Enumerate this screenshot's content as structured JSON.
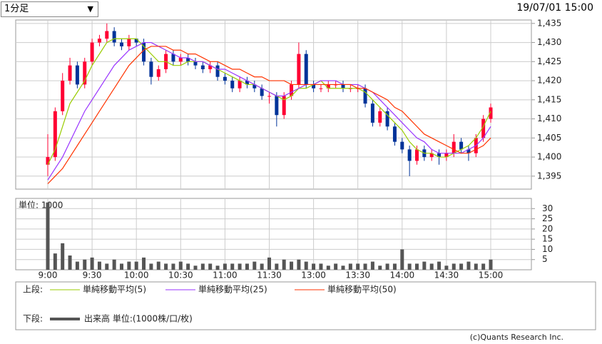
{
  "header": {
    "period_select": "1分足",
    "timestamp": "19/07/01 15:00"
  },
  "chart_data": [
    {
      "type": "candlestick",
      "categories": [
        "9:00",
        null,
        null,
        null,
        null,
        null,
        "9:30",
        null,
        null,
        null,
        null,
        null,
        "10:00",
        null,
        null,
        null,
        null,
        null,
        "10:30",
        null,
        null,
        null,
        null,
        null,
        "11:00",
        null,
        null,
        null,
        null,
        null,
        "11:30",
        null,
        null,
        null,
        null,
        null,
        "13:00",
        null,
        null,
        null,
        null,
        null,
        "13:30",
        null,
        null,
        null,
        null,
        null,
        "14:00",
        null,
        null,
        null,
        null,
        null,
        "14:30",
        null,
        null,
        null,
        null,
        null,
        "15:00"
      ],
      "open": [
        1398,
        1400,
        1412,
        1420,
        1424,
        1419,
        1425,
        1430,
        1431,
        1433,
        1430,
        1429,
        1431,
        1430,
        1425,
        1421,
        1423,
        1427,
        1425,
        1426,
        1425,
        1424,
        1423,
        1424,
        1421,
        1420,
        1418,
        1420,
        1419,
        1418,
        1416,
        1416,
        1411,
        1416,
        1419,
        1427,
        1419,
        1418,
        1418,
        1419,
        1419,
        1418,
        1418,
        1418,
        1414,
        1409,
        1412,
        1408,
        1404,
        1402,
        1399,
        1402,
        1400,
        1401,
        1400,
        1401,
        1404,
        1402,
        1401,
        1405,
        1410
      ],
      "high": [
        1406,
        1413,
        1422,
        1426,
        1425,
        1426,
        1431,
        1432,
        1435,
        1434,
        1431,
        1432,
        1431,
        1431,
        1426,
        1424,
        1428,
        1428,
        1427,
        1427,
        1426,
        1425,
        1425,
        1425,
        1422,
        1421,
        1421,
        1421,
        1420,
        1419,
        1417,
        1417,
        1417,
        1420,
        1430,
        1428,
        1420,
        1419,
        1420,
        1420,
        1420,
        1419,
        1419,
        1419,
        1415,
        1413,
        1413,
        1409,
        1405,
        1403,
        1403,
        1403,
        1402,
        1402,
        1402,
        1406,
        1405,
        1403,
        1406,
        1411,
        1414
      ],
      "low": [
        1395,
        1399,
        1411,
        1419,
        1418,
        1418,
        1424,
        1429,
        1430,
        1429,
        1428,
        1428,
        1429,
        1424,
        1419,
        1420,
        1422,
        1424,
        1424,
        1424,
        1423,
        1422,
        1422,
        1420,
        1419,
        1417,
        1417,
        1418,
        1417,
        1415,
        1414,
        1408,
        1410,
        1415,
        1418,
        1418,
        1417,
        1417,
        1417,
        1418,
        1417,
        1417,
        1417,
        1413,
        1408,
        1408,
        1407,
        1403,
        1401,
        1395,
        1398,
        1399,
        1399,
        1398,
        1399,
        1400,
        1401,
        1399,
        1400,
        1404,
        1409
      ],
      "close": [
        1400,
        1412,
        1420,
        1424,
        1419,
        1425,
        1430,
        1431,
        1433,
        1430,
        1429,
        1431,
        1430,
        1425,
        1421,
        1423,
        1427,
        1425,
        1426,
        1425,
        1424,
        1423,
        1424,
        1421,
        1420,
        1418,
        1420,
        1419,
        1418,
        1416,
        1416,
        1411,
        1416,
        1419,
        1427,
        1419,
        1418,
        1418,
        1419,
        1419,
        1418,
        1418,
        1418,
        1414,
        1409,
        1412,
        1408,
        1404,
        1402,
        1399,
        1402,
        1400,
        1401,
        1400,
        1401,
        1404,
        1402,
        1401,
        1405,
        1410,
        1413
      ],
      "up_color": "#ff0033",
      "down_color": "#003399",
      "series": [
        {
          "name": "単純移動平均(5)",
          "color": "#99cc00",
          "values": [
            1398,
            1402,
            1408,
            1414,
            1417,
            1420,
            1424,
            1427,
            1430,
            1431,
            1431,
            1431,
            1431,
            1429,
            1427,
            1425,
            1425,
            1424,
            1424,
            1425,
            1425,
            1425,
            1424,
            1423,
            1422,
            1421,
            1420,
            1419,
            1419,
            1418,
            1417,
            1416,
            1415,
            1416,
            1418,
            1418,
            1419,
            1420,
            1418,
            1418,
            1418,
            1418,
            1418,
            1417,
            1415,
            1413,
            1411,
            1409,
            1407,
            1404,
            1402,
            1401,
            1401,
            1400,
            1400,
            1401,
            1402,
            1403,
            1405,
            1408,
            1412
          ]
        },
        {
          "name": "単純移動平均(25)",
          "color": "#9933ff",
          "values": [
            1394,
            1397,
            1400,
            1404,
            1408,
            1412,
            1415,
            1418,
            1421,
            1424,
            1426,
            1428,
            1429,
            1430,
            1430,
            1429,
            1428,
            1427,
            1426,
            1426,
            1425,
            1425,
            1424,
            1423,
            1423,
            1422,
            1421,
            1420,
            1419,
            1418,
            1417,
            1416,
            1416,
            1417,
            1418,
            1419,
            1419,
            1420,
            1420,
            1420,
            1419,
            1419,
            1419,
            1418,
            1417,
            1415,
            1413,
            1411,
            1409,
            1407,
            1405,
            1404,
            1402,
            1401,
            1401,
            1401,
            1401,
            1402,
            1403,
            1405,
            1408
          ]
        },
        {
          "name": "単純移動平均(50)",
          "color": "#ff3300",
          "values": [
            1393,
            1395,
            1397,
            1400,
            1403,
            1406,
            1409,
            1412,
            1415,
            1418,
            1421,
            1424,
            1426,
            1428,
            1429,
            1429,
            1429,
            1428,
            1428,
            1427,
            1427,
            1426,
            1425,
            1425,
            1424,
            1423,
            1423,
            1422,
            1421,
            1421,
            1420,
            1420,
            1420,
            1419,
            1419,
            1419,
            1419,
            1419,
            1419,
            1419,
            1419,
            1419,
            1418,
            1418,
            1417,
            1416,
            1415,
            1413,
            1412,
            1410,
            1408,
            1406,
            1405,
            1404,
            1403,
            1402,
            1401,
            1401,
            1402,
            1403,
            1405
          ]
        }
      ],
      "ylim": [
        1391.6,
        1435.9
      ],
      "yticks": [
        {
          "value": 1395,
          "label": "1,395"
        },
        {
          "value": 1400,
          "label": "1,400"
        },
        {
          "value": 1405,
          "label": "1,405"
        },
        {
          "value": 1410,
          "label": "1,410"
        },
        {
          "value": 1415,
          "label": "1,415"
        },
        {
          "value": 1420,
          "label": "1,420"
        },
        {
          "value": 1425,
          "label": "1,425"
        },
        {
          "value": 1430,
          "label": "1,430"
        },
        {
          "value": 1435,
          "label": "1,435"
        }
      ],
      "grid": true
    },
    {
      "type": "bar",
      "unit_label": "単位: 1000",
      "color": "#555555",
      "values": [
        33,
        8,
        13,
        7,
        4,
        5,
        6,
        4,
        3,
        5,
        3,
        4,
        4,
        6,
        3,
        4,
        3,
        3,
        4,
        3,
        2,
        3,
        3,
        2,
        3,
        3,
        3,
        3,
        4,
        3,
        6,
        3,
        5,
        4,
        5,
        4,
        3,
        3,
        2,
        3,
        2,
        3,
        3,
        3,
        4,
        2,
        3,
        3,
        10,
        3,
        3,
        4,
        3,
        4,
        2,
        3,
        3,
        4,
        3,
        3,
        5
      ],
      "ylim": [
        0,
        35
      ],
      "yticks": [
        5,
        10,
        15,
        20,
        25,
        30
      ],
      "grid": true
    }
  ],
  "legend": {
    "upper_label": "上段:",
    "lower_label": "下段:",
    "lower_entry": "出来高 単位:(1000株/口/枚)"
  },
  "footer": "(c)Quants Research Inc."
}
